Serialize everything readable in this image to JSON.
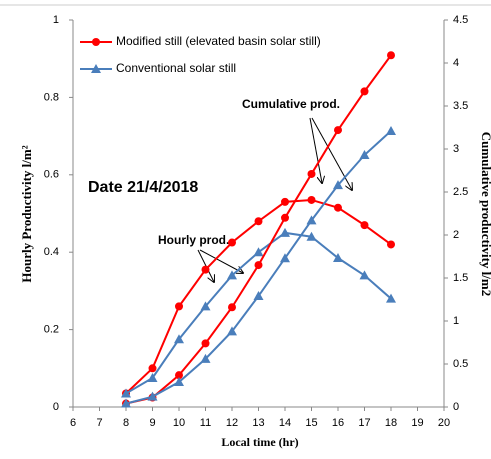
{
  "chart_data": {
    "type": "line",
    "xlabel": "Local time (hr)",
    "ylabel": "Hourly  Productivity l/m²",
    "y2label": "Cumulative productivity l/m2",
    "x": [
      8,
      9,
      10,
      11,
      12,
      13,
      14,
      15,
      16,
      17,
      18
    ],
    "xlim": [
      6,
      20
    ],
    "xticks": [
      6,
      7,
      8,
      9,
      10,
      11,
      12,
      13,
      14,
      15,
      16,
      17,
      18,
      19,
      20
    ],
    "ylim": [
      0,
      1
    ],
    "yticks": [
      0,
      0.2,
      0.4,
      0.6,
      0.8,
      1
    ],
    "y2lim": [
      0,
      4.5
    ],
    "y2ticks": [
      0,
      0.5,
      1,
      1.5,
      2,
      2.5,
      3,
      3.5,
      4,
      4.5
    ],
    "grid": false,
    "legend": "upper left",
    "series": [
      {
        "name": "Modified still (elevated basin solar still)",
        "color": "#ff0000",
        "marker": "circle",
        "values": [
          0.035,
          0.1,
          0.26,
          0.355,
          0.425,
          0.48,
          0.53,
          0.535,
          0.515,
          0.47,
          0.42
        ]
      },
      {
        "name": "Conventional solar still",
        "color": "#4a7ebb",
        "marker": "triangle",
        "values": [
          0.035,
          0.075,
          0.175,
          0.26,
          0.34,
          0.4,
          0.45,
          0.44,
          0.385,
          0.34,
          0.28
        ]
      },
      {
        "color": "#ff0000",
        "marker": "circle",
        "axis": "y2",
        "values": [
          0.04,
          0.11,
          0.37,
          0.74,
          1.16,
          1.65,
          2.2,
          2.71,
          3.22,
          3.67,
          4.09
        ]
      },
      {
        "color": "#4a7ebb",
        "marker": "triangle",
        "axis": "y2",
        "values": [
          0.04,
          0.12,
          0.29,
          0.56,
          0.88,
          1.29,
          1.73,
          2.17,
          2.58,
          2.93,
          3.21
        ]
      }
    ],
    "annotations": [
      "Date 21/4/2018",
      "Hourly prod.",
      "Cumulative prod."
    ]
  }
}
